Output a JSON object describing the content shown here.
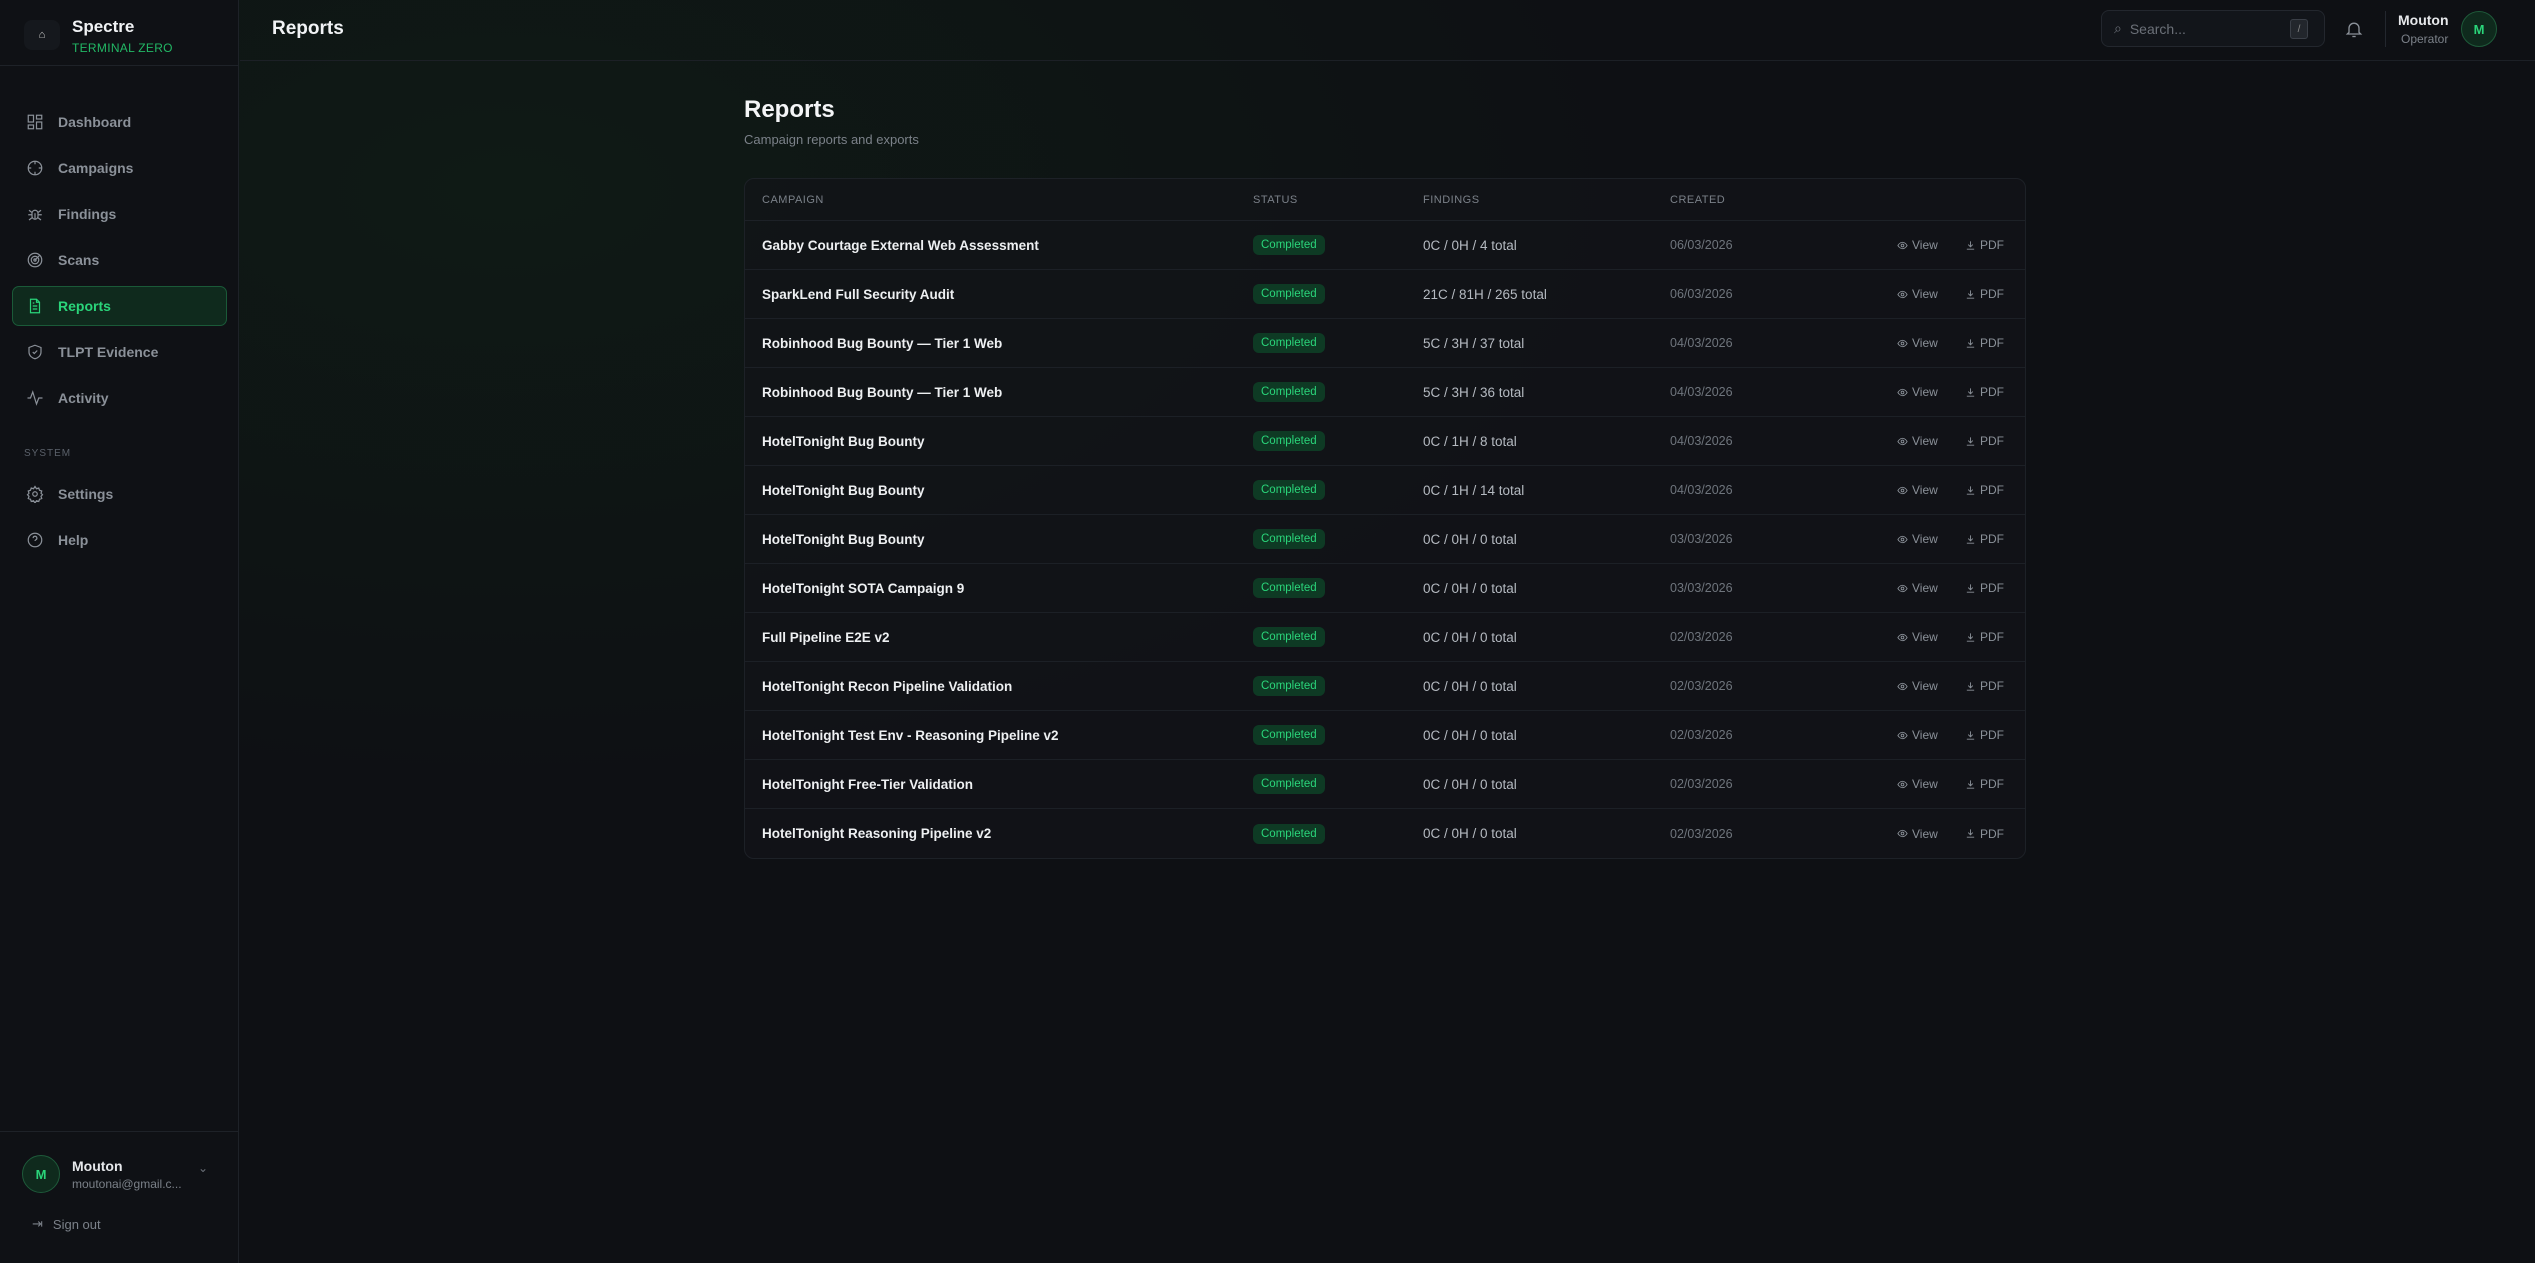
{
  "brand": {
    "name": "Spectre",
    "subtitle": "TERMINAL ZERO"
  },
  "sidebar": {
    "items": [
      {
        "label": "Dashboard",
        "icon": "dashboard-icon"
      },
      {
        "label": "Campaigns",
        "icon": "crosshair-icon"
      },
      {
        "label": "Findings",
        "icon": "bug-icon"
      },
      {
        "label": "Scans",
        "icon": "radar-icon"
      },
      {
        "label": "Reports",
        "icon": "file-text-icon",
        "active": true
      },
      {
        "label": "TLPT Evidence",
        "icon": "shield-check-icon"
      },
      {
        "label": "Activity",
        "icon": "activity-icon"
      }
    ],
    "section_label": "SYSTEM",
    "system_items": [
      {
        "label": "Settings",
        "icon": "gear-icon"
      },
      {
        "label": "Help",
        "icon": "help-circle-icon"
      }
    ],
    "user": {
      "initial": "M",
      "name": "Mouton",
      "email": "moutonai@gmail.c..."
    },
    "sign_out": "Sign out"
  },
  "header": {
    "title": "Reports",
    "search_placeholder": "Search...",
    "search_shortcut": "/",
    "user_name": "Mouton",
    "user_role": "Operator",
    "user_initial": "M"
  },
  "page": {
    "title": "Reports",
    "subtitle": "Campaign reports and exports"
  },
  "table": {
    "columns": [
      "CAMPAIGN",
      "STATUS",
      "FINDINGS",
      "CREATED"
    ],
    "view_label": "View",
    "pdf_label": "PDF",
    "rows": [
      {
        "campaign": "Gabby Courtage External Web Assessment",
        "status": "Completed",
        "findings": "0C / 0H / 4 total",
        "created": "06/03/2026"
      },
      {
        "campaign": "SparkLend Full Security Audit",
        "status": "Completed",
        "findings": "21C / 81H / 265 total",
        "created": "06/03/2026"
      },
      {
        "campaign": "Robinhood Bug Bounty — Tier 1 Web",
        "status": "Completed",
        "findings": "5C / 3H / 37 total",
        "created": "04/03/2026"
      },
      {
        "campaign": "Robinhood Bug Bounty — Tier 1 Web",
        "status": "Completed",
        "findings": "5C / 3H / 36 total",
        "created": "04/03/2026"
      },
      {
        "campaign": "HotelTonight Bug Bounty",
        "status": "Completed",
        "findings": "0C / 1H / 8 total",
        "created": "04/03/2026"
      },
      {
        "campaign": "HotelTonight Bug Bounty",
        "status": "Completed",
        "findings": "0C / 1H / 14 total",
        "created": "04/03/2026"
      },
      {
        "campaign": "HotelTonight Bug Bounty",
        "status": "Completed",
        "findings": "0C / 0H / 0 total",
        "created": "03/03/2026"
      },
      {
        "campaign": "HotelTonight SOTA Campaign 9",
        "status": "Completed",
        "findings": "0C / 0H / 0 total",
        "created": "03/03/2026"
      },
      {
        "campaign": "Full Pipeline E2E v2",
        "status": "Completed",
        "findings": "0C / 0H / 0 total",
        "created": "02/03/2026"
      },
      {
        "campaign": "HotelTonight Recon Pipeline Validation",
        "status": "Completed",
        "findings": "0C / 0H / 0 total",
        "created": "02/03/2026"
      },
      {
        "campaign": "HotelTonight Test Env - Reasoning Pipeline v2",
        "status": "Completed",
        "findings": "0C / 0H / 0 total",
        "created": "02/03/2026"
      },
      {
        "campaign": "HotelTonight Free-Tier Validation",
        "status": "Completed",
        "findings": "0C / 0H / 0 total",
        "created": "02/03/2026"
      },
      {
        "campaign": "HotelTonight Reasoning Pipeline v2",
        "status": "Completed",
        "findings": "0C / 0H / 0 total",
        "created": "02/03/2026"
      }
    ]
  },
  "colors": {
    "accent": "#2ad57a",
    "background": "#0e1014"
  }
}
